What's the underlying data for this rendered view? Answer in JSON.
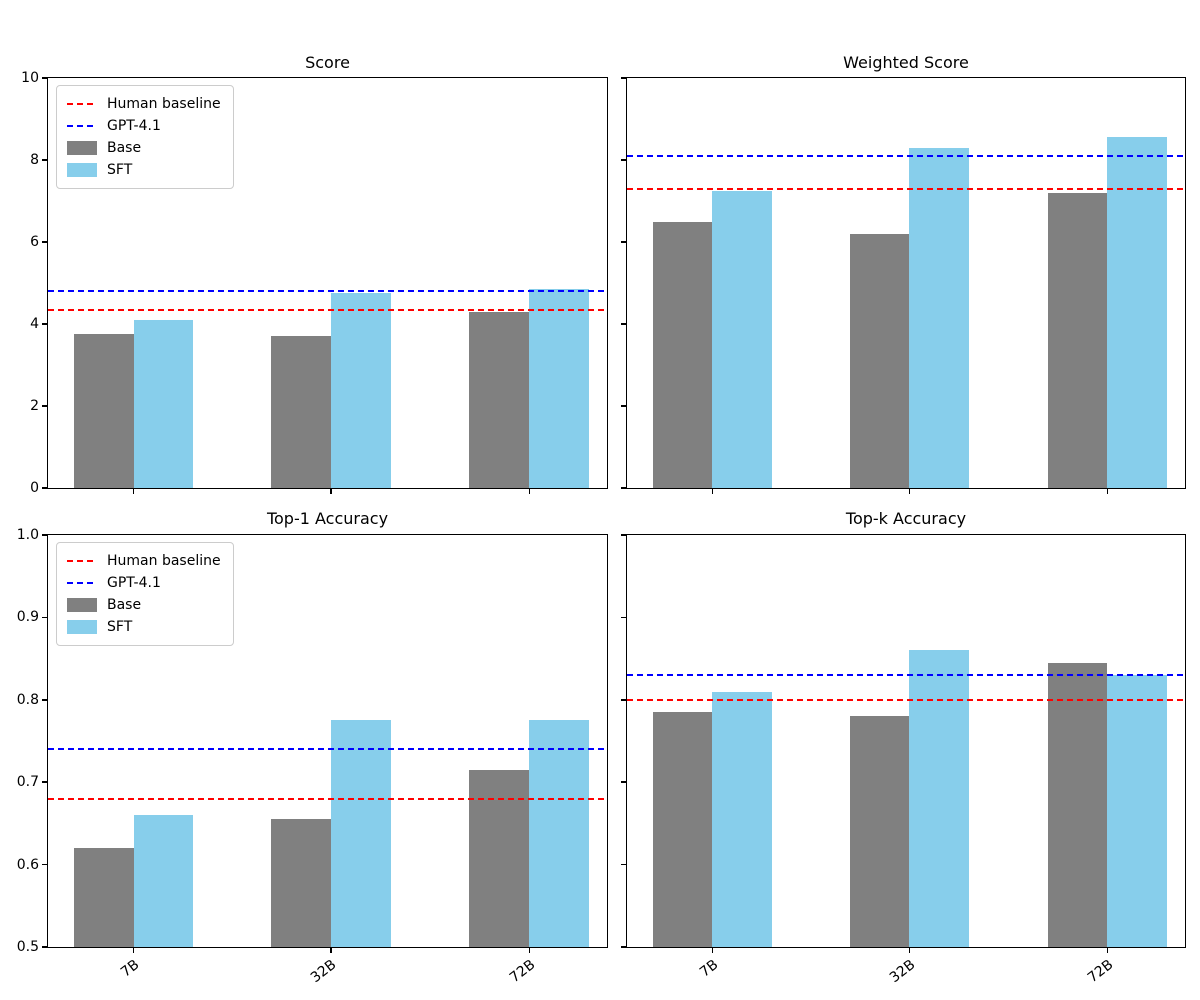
{
  "figure": {
    "background": "#ffffff",
    "bar_colors": {
      "base": "#808080",
      "sft": "#87CEEB"
    },
    "baseline_colors": {
      "human": "#ff0000",
      "gpt41": "#0000ff"
    }
  },
  "chart_data": [
    {
      "type": "bar",
      "title": "Score",
      "categories": [
        "7B",
        "32B",
        "72B"
      ],
      "series": [
        {
          "name": "Base",
          "color": "#808080",
          "values": [
            3.75,
            3.7,
            4.3
          ]
        },
        {
          "name": "SFT",
          "color": "#87CEEB",
          "values": [
            4.1,
            4.75,
            4.85
          ]
        }
      ],
      "baselines": [
        {
          "name": "Human baseline",
          "color": "#ff0000",
          "style": "dashed",
          "value": 4.35
        },
        {
          "name": "GPT-4.1",
          "color": "#0000ff",
          "style": "dashed",
          "value": 4.8
        }
      ],
      "ylim": [
        0,
        10
      ],
      "yticks": [
        0,
        2,
        4,
        6,
        8,
        10
      ],
      "ytick_labels": [
        "0",
        "2",
        "4",
        "6",
        "8",
        "10"
      ],
      "show_ytick_labels": true,
      "show_xtick_labels": false,
      "legend": {
        "show": true,
        "position": "upper-left",
        "entries": [
          "Human baseline",
          "GPT-4.1",
          "Base",
          "SFT"
        ]
      },
      "grid": false
    },
    {
      "type": "bar",
      "title": "Weighted Score",
      "categories": [
        "7B",
        "32B",
        "72B"
      ],
      "series": [
        {
          "name": "Base",
          "color": "#808080",
          "values": [
            6.5,
            6.2,
            7.2
          ]
        },
        {
          "name": "SFT",
          "color": "#87CEEB",
          "values": [
            7.25,
            8.3,
            8.55
          ]
        }
      ],
      "baselines": [
        {
          "name": "Human baseline",
          "color": "#ff0000",
          "style": "dashed",
          "value": 7.3
        },
        {
          "name": "GPT-4.1",
          "color": "#0000ff",
          "style": "dashed",
          "value": 8.1
        }
      ],
      "ylim": [
        0,
        10
      ],
      "yticks": [
        0,
        2,
        4,
        6,
        8,
        10
      ],
      "ytick_labels": [
        "0",
        "2",
        "4",
        "6",
        "8",
        "10"
      ],
      "show_ytick_labels": false,
      "show_xtick_labels": false,
      "legend": {
        "show": false,
        "position": "upper-left",
        "entries": []
      },
      "grid": false
    },
    {
      "type": "bar",
      "title": "Top-1 Accuracy",
      "categories": [
        "7B",
        "32B",
        "72B"
      ],
      "series": [
        {
          "name": "Base",
          "color": "#808080",
          "values": [
            0.62,
            0.655,
            0.715
          ]
        },
        {
          "name": "SFT",
          "color": "#87CEEB",
          "values": [
            0.66,
            0.775,
            0.775
          ]
        }
      ],
      "baselines": [
        {
          "name": "Human baseline",
          "color": "#ff0000",
          "style": "dashed",
          "value": 0.68
        },
        {
          "name": "GPT-4.1",
          "color": "#0000ff",
          "style": "dashed",
          "value": 0.74
        }
      ],
      "ylim": [
        0.5,
        1.0
      ],
      "yticks": [
        0.5,
        0.6,
        0.7,
        0.8,
        0.9,
        1.0
      ],
      "ytick_labels": [
        "0.5",
        "0.6",
        "0.7",
        "0.8",
        "0.9",
        "1.0"
      ],
      "show_ytick_labels": true,
      "show_xtick_labels": true,
      "legend": {
        "show": true,
        "position": "upper-left",
        "entries": [
          "Human baseline",
          "GPT-4.1",
          "Base",
          "SFT"
        ]
      },
      "grid": false
    },
    {
      "type": "bar",
      "title": "Top-k Accuracy",
      "categories": [
        "7B",
        "32B",
        "72B"
      ],
      "series": [
        {
          "name": "Base",
          "color": "#808080",
          "values": [
            0.785,
            0.78,
            0.845
          ]
        },
        {
          "name": "SFT",
          "color": "#87CEEB",
          "values": [
            0.81,
            0.86,
            0.83
          ]
        }
      ],
      "baselines": [
        {
          "name": "Human baseline",
          "color": "#ff0000",
          "style": "dashed",
          "value": 0.8
        },
        {
          "name": "GPT-4.1",
          "color": "#0000ff",
          "style": "dashed",
          "value": 0.83
        }
      ],
      "ylim": [
        0.5,
        1.0
      ],
      "yticks": [
        0.5,
        0.6,
        0.7,
        0.8,
        0.9,
        1.0
      ],
      "ytick_labels": [
        "0.5",
        "0.6",
        "0.7",
        "0.8",
        "0.9",
        "1.0"
      ],
      "show_ytick_labels": false,
      "show_xtick_labels": true,
      "legend": {
        "show": false,
        "position": "upper-left",
        "entries": []
      },
      "grid": false
    }
  ]
}
